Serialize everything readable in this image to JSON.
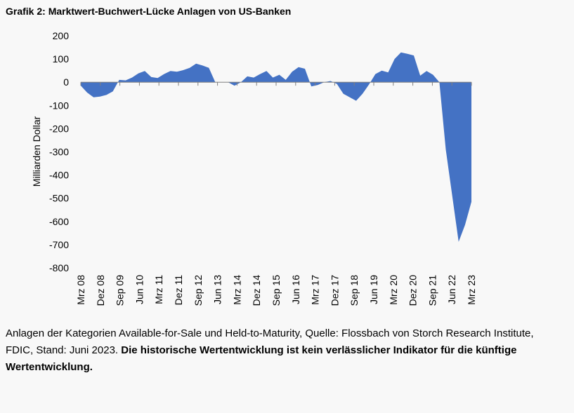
{
  "title": "Grafik 2: Marktwert-Buchwert-Lücke Anlagen von US-Banken",
  "footnote": {
    "text": "Anlagen der Kategorien Available-for-Sale und Held-to-Maturity, Quelle: Flossbach von Storch Research Institute, FDIC, Stand: Juni 2023.",
    "bold": "Die historische Wertentwicklung ist kein verlässlicher Indikator für die künftige Wertentwicklung."
  },
  "colors": {
    "area": "#4472c4",
    "axis": "#7f7f7f"
  },
  "chart_data": {
    "type": "area",
    "title": "Grafik 2: Marktwert-Buchwert-Lücke Anlagen von US-Banken",
    "xlabel": "",
    "ylabel": "Milliarden Dollar",
    "ylim": [
      -800,
      200
    ],
    "yticks": [
      200,
      100,
      0,
      -100,
      -200,
      -300,
      -400,
      -500,
      -600,
      -700,
      -800
    ],
    "xticks": [
      "Mrz 08",
      "Dez 08",
      "Sep 09",
      "Jun 10",
      "Mrz 11",
      "Dez 11",
      "Sep 12",
      "Jun 13",
      "Mrz 14",
      "Dez 14",
      "Sep 15",
      "Jun 16",
      "Mrz 17",
      "Dez 17",
      "Sep 18",
      "Jun 19",
      "Mrz 20",
      "Dez 20",
      "Sep 21",
      "Jun 22",
      "Mrz 23"
    ],
    "grid": false,
    "series": [
      {
        "values": [
          -15,
          -45,
          -65,
          -62,
          -55,
          -40,
          10,
          8,
          20,
          38,
          48,
          22,
          18,
          35,
          48,
          45,
          52,
          62,
          80,
          72,
          62,
          0,
          0,
          0,
          -15,
          0,
          25,
          20,
          35,
          48,
          20,
          32,
          10,
          45,
          65,
          58,
          -18,
          -12,
          0,
          5,
          -8,
          -50,
          -65,
          -80,
          -50,
          -10,
          35,
          50,
          42,
          100,
          128,
          122,
          115,
          28,
          48,
          32,
          0,
          -290,
          -490,
          -688,
          -615,
          -515
        ]
      }
    ]
  }
}
